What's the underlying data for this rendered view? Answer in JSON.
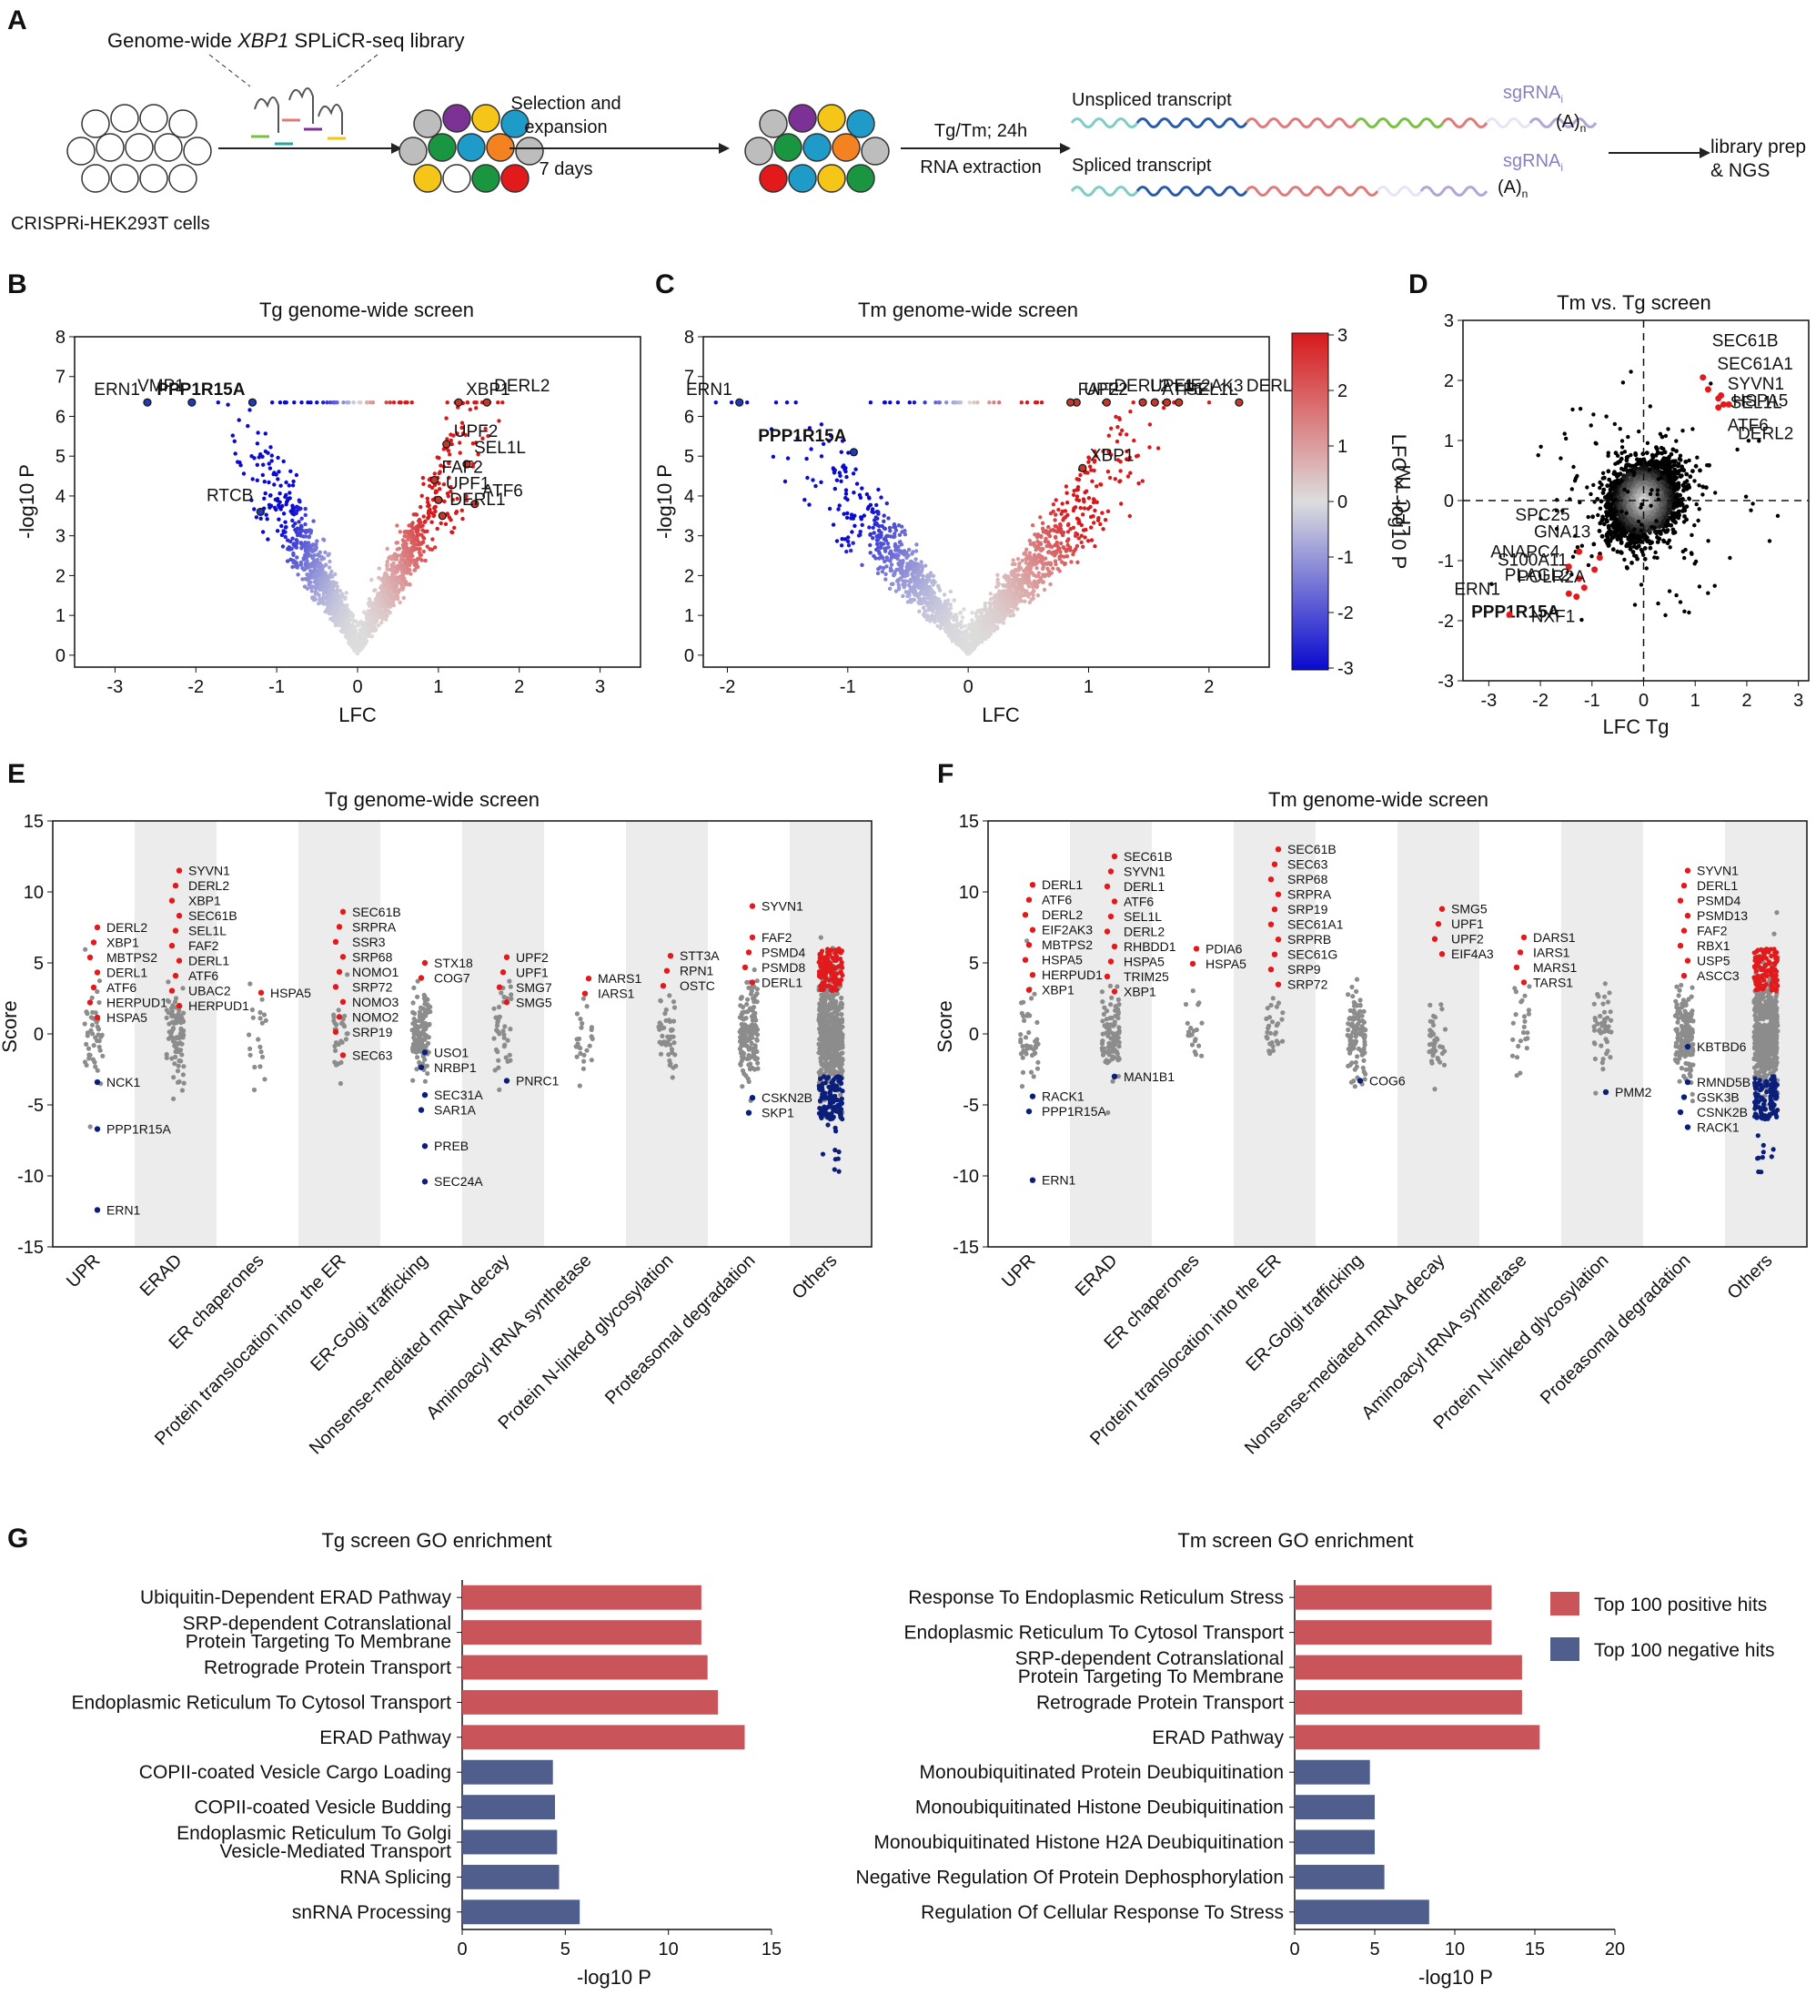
{
  "panels": {
    "A": "A",
    "B": "B",
    "C": "C",
    "D": "D",
    "E": "E",
    "F": "F",
    "G": "G"
  },
  "schematic": {
    "library_prefix": "Genome-wide ",
    "library_gene": "XBP1",
    "library_suffix": " SPLiCR-seq library",
    "cells": "CRISPRi-HEK293T cells",
    "step1_line1": "Selection and",
    "step1_line2": "expansion",
    "step1_days": "7 days",
    "step2_line1": "Tg/Tm; 24h",
    "step2_line2": "RNA extraction",
    "unspliced": "Unspliced transcript",
    "spliced": "Spliced transcript",
    "sgrna": "sgRNA",
    "sgrna_sub": "i",
    "polya": "(A)",
    "polya_sub": "n",
    "output_line1": "library prep",
    "output_line2": "& NGS",
    "colors": {
      "teal": "#7fcdc4",
      "blue": "#2a5caa",
      "red": "#e07b7b",
      "green": "#7ac143",
      "lavender": "#b3a6d6",
      "orange": "#f58220",
      "gray": "#bdbdbd",
      "purple": "#7b3294",
      "yellow": "#f5c518",
      "darkgreen": "#1a9641",
      "cyan": "#1f9bc9",
      "crimson": "#e31a1c"
    }
  },
  "charts": {
    "B": {
      "type": "scatter",
      "title": "Tg genome-wide screen",
      "xlabel": "LFC",
      "ylabel": "-log10 P",
      "xlim": [
        -3.5,
        3.5
      ],
      "ylim": [
        -0.3,
        8
      ],
      "xticks": [
        "-3",
        "-2",
        "-1",
        "0",
        "1",
        "2",
        "3"
      ],
      "yticks": [
        "0",
        "1",
        "2",
        "3",
        "4",
        "5",
        "6",
        "7",
        "8"
      ],
      "labeled_points": [
        {
          "name": "ERN1",
          "x": -2.6,
          "y": 6.35
        },
        {
          "name": "VMP1",
          "x": -2.05,
          "y": 6.35
        },
        {
          "name": "PPP1R15A",
          "x": -1.3,
          "y": 6.35,
          "bold": true
        },
        {
          "name": "RTCB",
          "x": -1.2,
          "y": 3.6
        },
        {
          "name": "XBP1",
          "x": 1.25,
          "y": 6.35
        },
        {
          "name": "DERL2",
          "x": 1.6,
          "y": 6.35
        },
        {
          "name": "UPF2",
          "x": 1.1,
          "y": 5.3
        },
        {
          "name": "SEL1L",
          "x": 1.35,
          "y": 4.8
        },
        {
          "name": "FAF2",
          "x": 0.95,
          "y": 4.4
        },
        {
          "name": "UPF1",
          "x": 1.0,
          "y": 3.9
        },
        {
          "name": "ATF6",
          "x": 1.45,
          "y": 3.8
        },
        {
          "name": "DERL1",
          "x": 1.05,
          "y": 3.5
        }
      ]
    },
    "C": {
      "type": "scatter",
      "title": "Tm genome-wide screen",
      "xlabel": "LFC",
      "ylabel": "-log10 P",
      "xlim": [
        -2.2,
        2.5
      ],
      "ylim": [
        -0.3,
        8
      ],
      "xticks": [
        "-2",
        "-1",
        "0",
        "1",
        "2"
      ],
      "yticks": [
        "0",
        "1",
        "2",
        "3",
        "4",
        "5",
        "6",
        "7",
        "8"
      ],
      "colorbar": {
        "label": "LFC × -log10 P",
        "ticks": [
          "3",
          "2",
          "1",
          "0",
          "-1",
          "-2",
          "-3"
        ]
      },
      "labeled_points": [
        {
          "name": "ERN1",
          "x": -1.9,
          "y": 6.35
        },
        {
          "name": "PPP1R15A",
          "x": -0.95,
          "y": 5.1,
          "bold": true
        },
        {
          "name": "UPF2",
          "x": 0.9,
          "y": 6.35
        },
        {
          "name": "DERL2",
          "x": 1.15,
          "y": 6.35
        },
        {
          "name": "ATF6",
          "x": 1.55,
          "y": 6.35
        },
        {
          "name": "DERL1",
          "x": 2.25,
          "y": 6.35
        },
        {
          "name": "FAF2",
          "x": 0.85,
          "y": 6.35
        },
        {
          "name": "UPF1",
          "x": 1.45,
          "y": 6.35
        },
        {
          "name": "SEL1L",
          "x": 1.75,
          "y": 6.35
        },
        {
          "name": "EIF2AK3",
          "x": 1.65,
          "y": 6.35
        },
        {
          "name": "XBP1",
          "x": 0.95,
          "y": 4.7
        }
      ]
    },
    "D": {
      "type": "scatter",
      "title": "Tm vs. Tg screen",
      "xlabel": "LFC Tg",
      "ylabel": "LFC TM",
      "xlim": [
        -3.5,
        3.2
      ],
      "ylim": [
        -3,
        3
      ],
      "xticks": [
        "-3",
        "-2",
        "-1",
        "0",
        "1",
        "2",
        "3"
      ],
      "yticks": [
        "-3",
        "-2",
        "-1",
        "0",
        "1",
        "2",
        "3"
      ],
      "labeled_points": [
        {
          "name": "SEC61B",
          "x": 1.15,
          "y": 2.05
        },
        {
          "name": "SEC61A1",
          "x": 1.25,
          "y": 1.85
        },
        {
          "name": "SYVN1",
          "x": 1.45,
          "y": 1.7
        },
        {
          "name": "HSPA5",
          "x": 1.55,
          "y": 1.6
        },
        {
          "name": "SEL1L",
          "x": 1.5,
          "y": 1.75
        },
        {
          "name": "ATF6",
          "x": 1.45,
          "y": 1.55
        },
        {
          "name": "DERL2",
          "x": 1.65,
          "y": 1.6
        },
        {
          "name": "SPC25",
          "x": -1.25,
          "y": -0.85
        },
        {
          "name": "GNA13",
          "x": -0.85,
          "y": -0.95
        },
        {
          "name": "ANAPC4",
          "x": -1.45,
          "y": -1.1
        },
        {
          "name": "PLAGL2",
          "x": -1.25,
          "y": -1.3
        },
        {
          "name": "POLR2A",
          "x": -0.95,
          "y": -1.15
        },
        {
          "name": "PPP1R15A",
          "x": -1.45,
          "y": -1.55,
          "bold": true
        },
        {
          "name": "NXF1",
          "x": -1.15,
          "y": -1.45
        },
        {
          "name": "S100A11",
          "x": -1.3,
          "y": -1.6
        },
        {
          "name": "ERN1",
          "x": -2.6,
          "y": -1.9
        }
      ]
    },
    "E": {
      "type": "strip",
      "title": "Tg genome-wide screen",
      "ylabel": "Score",
      "ylim": [
        -15,
        15
      ],
      "yticks": [
        "15",
        "10",
        "5",
        "0",
        "-5",
        "-10",
        "-15"
      ],
      "categories": [
        "UPR",
        "ERAD",
        "ER chaperones",
        "Protein translocation into the ER",
        "ER-Golgi trafficking",
        "Nonsense-mediated mRNA decay",
        "Aminoacyl tRNA synthetase",
        "Protein N-linked glycosylation",
        "Proteasomal degradation",
        "Others"
      ],
      "labels": [
        {
          "cat": 0,
          "lines": [
            "DERL2",
            "XBP1",
            "MBTPS2",
            "DERL1",
            "ATF6",
            "HERPUD1",
            "HSPA5"
          ],
          "y": 7.5,
          "side": "pos"
        },
        {
          "cat": 0,
          "lines": [
            "NCK1"
          ],
          "y": -3.4,
          "side": "neg"
        },
        {
          "cat": 0,
          "lines": [
            "PPP1R15A"
          ],
          "y": -6.7,
          "side": "neg"
        },
        {
          "cat": 0,
          "lines": [
            "ERN1"
          ],
          "y": -12.4,
          "side": "neg"
        },
        {
          "cat": 1,
          "lines": [
            "SYVN1",
            "DERL2",
            "XBP1",
            "SEC61B",
            "SEL1L",
            "FAF2",
            "DERL1",
            "ATF6",
            "UBAC2",
            "HERPUD1"
          ],
          "y": 11.5,
          "side": "pos"
        },
        {
          "cat": 2,
          "lines": [
            "HSPA5"
          ],
          "y": 2.9,
          "side": "pos"
        },
        {
          "cat": 3,
          "lines": [
            "SEC61B",
            "SRPRA",
            "SSR3",
            "SRP68",
            "NOMO1",
            "SRP72",
            "NOMO3",
            "NOMO2",
            "SRP19"
          ],
          "y": 8.6,
          "side": "pos"
        },
        {
          "cat": 3,
          "lines": [
            "SEC63"
          ],
          "y": -1.5,
          "side": "pos"
        },
        {
          "cat": 4,
          "lines": [
            "STX18",
            "COG7"
          ],
          "y": 5.0,
          "side": "pos"
        },
        {
          "cat": 4,
          "lines": [
            "USO1",
            "NRBP1"
          ],
          "y": -1.3,
          "side": "neg"
        },
        {
          "cat": 4,
          "lines": [
            "SEC31A",
            "SAR1A"
          ],
          "y": -4.3,
          "side": "neg"
        },
        {
          "cat": 4,
          "lines": [
            "PREB"
          ],
          "y": -7.9,
          "side": "neg"
        },
        {
          "cat": 4,
          "lines": [
            "SEC24A"
          ],
          "y": -10.4,
          "side": "neg"
        },
        {
          "cat": 5,
          "lines": [
            "UPF2",
            "UPF1",
            "SMG7",
            "SMG5"
          ],
          "y": 5.4,
          "side": "pos"
        },
        {
          "cat": 5,
          "lines": [
            "PNRC1"
          ],
          "y": -3.3,
          "side": "neg"
        },
        {
          "cat": 6,
          "lines": [
            "MARS1",
            "IARS1"
          ],
          "y": 3.9,
          "side": "pos"
        },
        {
          "cat": 7,
          "lines": [
            "STT3A",
            "RPN1",
            "OSTC"
          ],
          "y": 5.5,
          "side": "pos"
        },
        {
          "cat": 8,
          "lines": [
            "SYVN1"
          ],
          "y": 9.0,
          "side": "pos"
        },
        {
          "cat": 8,
          "lines": [
            "FAF2",
            "PSMD4",
            "PSMD8",
            "DERL1"
          ],
          "y": 6.8,
          "side": "pos"
        },
        {
          "cat": 8,
          "lines": [
            "CSKN2B",
            "SKP1"
          ],
          "y": -4.5,
          "side": "neg"
        }
      ]
    },
    "F": {
      "type": "strip",
      "title": "Tm genome-wide screen",
      "ylabel": "Score",
      "ylim": [
        -15,
        15
      ],
      "yticks": [
        "15",
        "10",
        "5",
        "0",
        "-5",
        "-10",
        "-15"
      ],
      "categories": [
        "UPR",
        "ERAD",
        "ER chaperones",
        "Protein translocation into the ER",
        "ER-Golgi trafficking",
        "Nonsense-mediated mRNA decay",
        "Aminoacyl tRNA synthetase",
        "Protein N-linked glycosylation",
        "Proteasomal degradation",
        "Others"
      ],
      "labels": [
        {
          "cat": 0,
          "lines": [
            "DERL1",
            "ATF6",
            "DERL2",
            "EIF2AK3",
            "MBTPS2",
            "HSPA5",
            "HERPUD1",
            "XBP1"
          ],
          "y": 10.5,
          "side": "pos"
        },
        {
          "cat": 0,
          "lines": [
            "RACK1",
            "PPP1R15A"
          ],
          "y": -4.4,
          "side": "neg"
        },
        {
          "cat": 0,
          "lines": [
            "ERN1"
          ],
          "y": -10.3,
          "side": "neg"
        },
        {
          "cat": 1,
          "lines": [
            "SEC61B",
            "SYVN1",
            "DERL1",
            "ATF6",
            "SEL1L",
            "DERL2",
            "RHBDD1",
            "HSPA5",
            "TRIM25",
            "XBP1"
          ],
          "y": 12.5,
          "side": "pos"
        },
        {
          "cat": 1,
          "lines": [
            "MAN1B1"
          ],
          "y": -3.0,
          "side": "neg"
        },
        {
          "cat": 2,
          "lines": [
            "PDIA6",
            "HSPA5"
          ],
          "y": 6.0,
          "side": "pos"
        },
        {
          "cat": 3,
          "lines": [
            "SEC61B",
            "SEC63",
            "SRP68",
            "SRPRA",
            "SRP19",
            "SEC61A1",
            "SRPRB",
            "SEC61G",
            "SRP9",
            "SRP72"
          ],
          "y": 13.0,
          "side": "pos"
        },
        {
          "cat": 4,
          "lines": [
            "COG6"
          ],
          "y": -3.3,
          "side": "neg"
        },
        {
          "cat": 5,
          "lines": [
            "SMG5",
            "UPF1",
            "UPF2",
            "EIF4A3"
          ],
          "y": 8.8,
          "side": "pos"
        },
        {
          "cat": 6,
          "lines": [
            "DARS1",
            "IARS1",
            "MARS1",
            "TARS1"
          ],
          "y": 6.8,
          "side": "pos"
        },
        {
          "cat": 7,
          "lines": [
            "PMM2"
          ],
          "y": -4.1,
          "side": "neg"
        },
        {
          "cat": 8,
          "lines": [
            "SYVN1",
            "DERL1",
            "PSMD4",
            "PSMD13",
            "FAF2",
            "RBX1",
            "USP5",
            "ASCC3"
          ],
          "y": 11.5,
          "side": "pos"
        },
        {
          "cat": 8,
          "lines": [
            "KBTBD6"
          ],
          "y": -0.9,
          "side": "neg"
        },
        {
          "cat": 8,
          "lines": [
            "RMND5B",
            "GSK3B",
            "CSNK2B",
            "RACK1"
          ],
          "y": -3.4,
          "side": "neg"
        }
      ]
    }
  },
  "chart_data": [
    {
      "type": "bar",
      "orientation": "horizontal",
      "title": "Tg screen GO enrichment",
      "xlabel": "-log10 P",
      "xlim": [
        0,
        15
      ],
      "xticks": [
        "0",
        "5",
        "10",
        "15"
      ],
      "categories": [
        {
          "lines": [
            "Ubiquitin-Dependent ERAD Pathway"
          ]
        },
        {
          "lines": [
            "SRP-dependent Cotranslational",
            "Protein Targeting To Membrane"
          ]
        },
        {
          "lines": [
            "Retrograde Protein Transport"
          ]
        },
        {
          "lines": [
            "Endoplasmic Reticulum To Cytosol Transport"
          ]
        },
        {
          "lines": [
            "ERAD Pathway"
          ]
        },
        {
          "lines": [
            "COPII-coated Vesicle Cargo Loading"
          ]
        },
        {
          "lines": [
            "COPII-coated Vesicle Budding"
          ]
        },
        {
          "lines": [
            "Endoplasmic Reticulum To Golgi",
            "Vesicle-Mediated Transport"
          ]
        },
        {
          "lines": [
            "RNA Splicing"
          ]
        },
        {
          "lines": [
            "snRNA Processing"
          ]
        }
      ],
      "values": [
        11.6,
        11.6,
        11.9,
        12.4,
        13.7,
        4.4,
        4.5,
        4.6,
        4.7,
        5.7
      ],
      "groups": [
        "pos",
        "pos",
        "pos",
        "pos",
        "pos",
        "neg",
        "neg",
        "neg",
        "neg",
        "neg"
      ]
    },
    {
      "type": "bar",
      "orientation": "horizontal",
      "title": "Tm screen GO enrichment",
      "xlabel": "-log10 P",
      "xlim": [
        0,
        20
      ],
      "xticks": [
        "0",
        "5",
        "10",
        "15",
        "20"
      ],
      "categories": [
        {
          "lines": [
            "Response To Endoplasmic Reticulum Stress"
          ]
        },
        {
          "lines": [
            "Endoplasmic Reticulum To Cytosol Transport"
          ]
        },
        {
          "lines": [
            "SRP-dependent Cotranslational",
            "Protein Targeting To Membrane"
          ]
        },
        {
          "lines": [
            "Retrograde Protein Transport"
          ]
        },
        {
          "lines": [
            "ERAD Pathway"
          ]
        },
        {
          "lines": [
            "Monoubiquitinated Protein Deubiquitination"
          ]
        },
        {
          "lines": [
            "Monoubiquitinated Histone Deubiquitination"
          ]
        },
        {
          "lines": [
            "Monoubiquitinated Histone H2A Deubiquitination"
          ]
        },
        {
          "lines": [
            "Negative Regulation Of Protein Dephosphorylation"
          ]
        },
        {
          "lines": [
            "Regulation Of Cellular Response To Stress"
          ]
        }
      ],
      "values": [
        12.3,
        12.3,
        14.2,
        14.2,
        15.3,
        4.7,
        5.0,
        5.0,
        5.6,
        8.4
      ],
      "groups": [
        "pos",
        "pos",
        "pos",
        "pos",
        "pos",
        "neg",
        "neg",
        "neg",
        "neg",
        "neg"
      ]
    }
  ],
  "legend": {
    "pos": "Top 100 positive hits",
    "neg": "Top 100 negative hits"
  },
  "colors": {
    "pos_bar": "#c9555b",
    "neg_bar": "#4f5e8c",
    "red": "#e31a1c",
    "navy": "#0b1f7a",
    "gray": "#8c8c8c"
  }
}
